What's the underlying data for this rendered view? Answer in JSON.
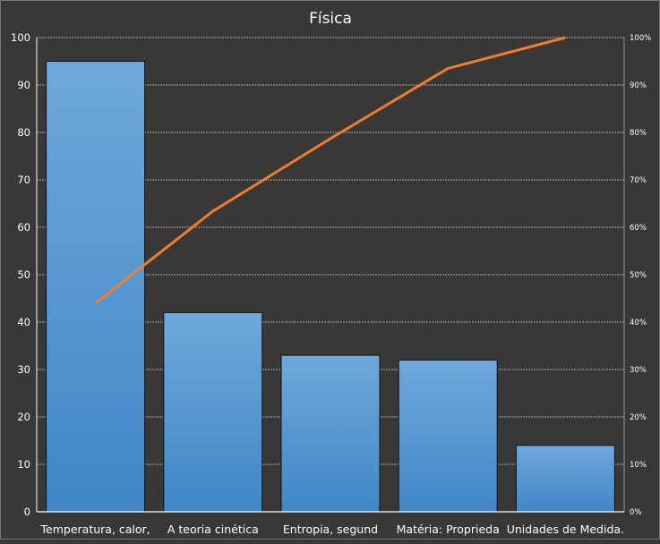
{
  "chart_data": {
    "type": "bar",
    "title": "Física",
    "categories": [
      "Temperatura, calor,",
      "A teoria cinética",
      "Entropia, segund",
      "Matéria: Proprieda",
      "Unidades de Medida."
    ],
    "values": [
      95,
      42,
      33,
      32,
      14
    ],
    "line_series": {
      "values_percent": [
        44.0,
        63.4,
        78.7,
        93.5,
        100.0
      ]
    },
    "ylim": [
      0,
      100
    ],
    "yticks": [
      0,
      10,
      20,
      30,
      40,
      50,
      60,
      70,
      80,
      90,
      100
    ],
    "y2lim": [
      0,
      100
    ],
    "y2ticks": [
      "0%",
      "10%",
      "20%",
      "30%",
      "40%",
      "50%",
      "60%",
      "70%",
      "80%",
      "90%",
      "100%"
    ],
    "grid": true,
    "colors": {
      "background": "#3a3836",
      "bar_top": "#6fa8dc",
      "bar_bottom": "#3f87c6",
      "line": "#ed7d31",
      "grid": "#cccccc"
    }
  }
}
